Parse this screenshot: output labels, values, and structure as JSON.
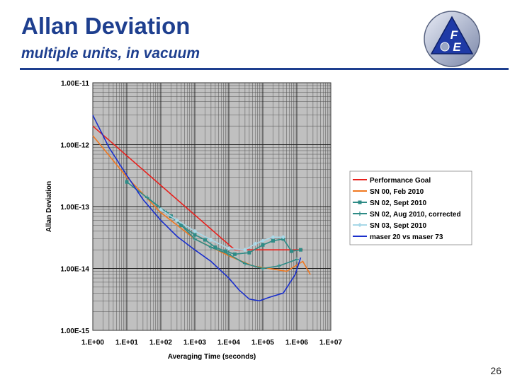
{
  "slide": {
    "title": "Allan Deviation",
    "subtitle": "multiple units, in vacuum",
    "page_number": "26",
    "logo_text": [
      "F",
      "E"
    ]
  },
  "colors": {
    "title": "#1e3f8f",
    "plot_bg": "#c0c0c0"
  },
  "chart_data": {
    "type": "line",
    "title": "",
    "xlabel": "Averaging Time (seconds)",
    "ylabel": "Allan Deviation",
    "xscale": "log",
    "yscale": "log",
    "xlim": [
      1,
      10000000
    ],
    "ylim": [
      1e-15,
      1e-11
    ],
    "x_tick_values": [
      1,
      10,
      100,
      1000,
      10000,
      100000,
      1000000,
      10000000
    ],
    "x_tick_labels": [
      "1.E+00",
      "1.E+01",
      "1.E+02",
      "1.E+03",
      "1.E+04",
      "1.E+05",
      "1.E+06",
      "1.E+07"
    ],
    "y_tick_values": [
      1e-11,
      1e-12,
      1e-13,
      1e-14,
      1e-15
    ],
    "y_tick_labels": [
      "1.00E-11",
      "1.00E-12",
      "1.00E-13",
      "1.00E-14",
      "1.00E-15"
    ],
    "grid": true,
    "legend_position": "right",
    "series": [
      {
        "name": "Performance Goal",
        "color": "#e8201c",
        "marker": "none",
        "x": [
          1,
          15000,
          1500000
        ],
        "y": [
          2e-12,
          2e-14,
          2e-14
        ]
      },
      {
        "name": "SN 00, Feb 2010",
        "color": "#f07820",
        "marker": "none",
        "x": [
          1,
          10,
          100,
          1000,
          10000,
          50000,
          150000,
          500000,
          1500000,
          2500000
        ],
        "y": [
          1.4e-12,
          3e-13,
          8e-14,
          3e-14,
          1.6e-14,
          1.1e-14,
          1e-14,
          9e-15,
          1.3e-14,
          8e-15
        ]
      },
      {
        "name": "SN 02, Sept 2010",
        "color": "#2e8b86",
        "marker": "square",
        "x": [
          10,
          200,
          400,
          1000,
          2000,
          4000,
          8000,
          15000,
          40000,
          100000,
          200000,
          400000,
          700000,
          1300000
        ],
        "y": [
          2.5e-13,
          7e-14,
          5e-14,
          3.5e-14,
          2.9e-14,
          2.2e-14,
          1.9e-14,
          1.7e-14,
          1.8e-14,
          2.4e-14,
          2.8e-14,
          3e-14,
          1.9e-14,
          2e-14
        ]
      },
      {
        "name": "SN 02, Aug 2010, corrected",
        "color": "#2e8b86",
        "marker": "plus",
        "x": [
          40,
          150,
          400,
          1000,
          3000,
          10000,
          30000,
          100000,
          300000,
          1000000
        ],
        "y": [
          1.4e-13,
          8e-14,
          5e-14,
          3e-14,
          2.2e-14,
          1.7e-14,
          1.2e-14,
          1e-14,
          1.1e-14,
          1.4e-14
        ]
      },
      {
        "name": "SN 03, Sept 2010",
        "color": "#a8d8e8",
        "marker": "diamond",
        "x": [
          100,
          300,
          1000,
          3000,
          10000,
          30000,
          60000,
          100000,
          200000,
          400000
        ],
        "y": [
          9e-14,
          6e-14,
          4e-14,
          2.9e-14,
          2.1e-14,
          2e-14,
          2.5e-14,
          2.8e-14,
          3.2e-14,
          3.2e-14
        ]
      },
      {
        "name": "maser 20 vs maser 73",
        "color": "#1a2fcc",
        "marker": "none",
        "x": [
          1,
          3,
          10,
          30,
          100,
          300,
          1000,
          3000,
          10000,
          20000,
          40000,
          80000,
          150000,
          400000,
          900000,
          1300000
        ],
        "y": [
          3e-12,
          9e-13,
          3.2e-13,
          1.3e-13,
          6e-14,
          3.3e-14,
          2e-14,
          1.3e-14,
          7e-15,
          4.5e-15,
          3.2e-15,
          3e-15,
          3.4e-15,
          4e-15,
          8e-15,
          1.5e-14
        ]
      }
    ]
  }
}
